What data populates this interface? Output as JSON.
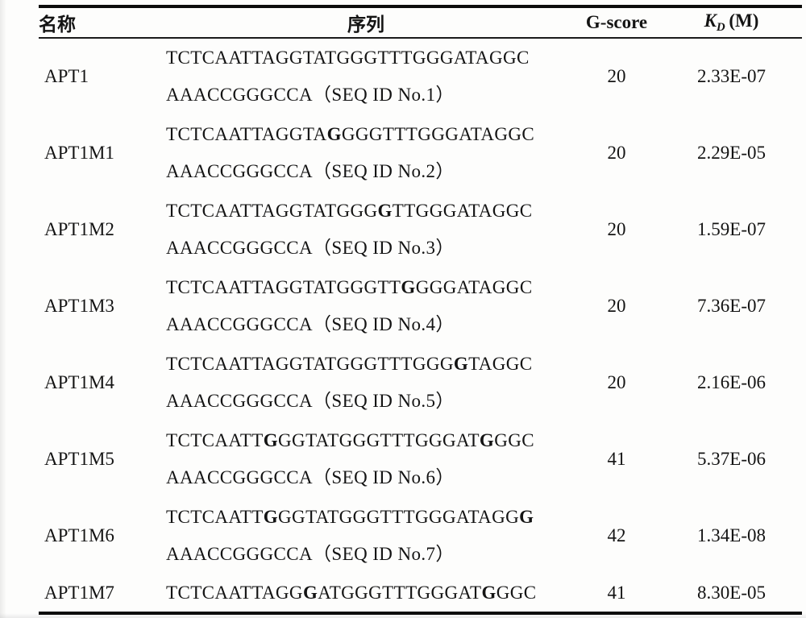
{
  "page": {
    "background": "#fdfdfc",
    "text_color": "#141414",
    "rule_color": "#0c0c0c"
  },
  "table": {
    "headers": {
      "name": "名称",
      "sequence": "序列",
      "gscore": "G-score",
      "kd_symbol": "K",
      "kd_subscript": "D",
      "kd_unit": "(M)"
    },
    "rows": [
      {
        "name": "APT1",
        "seq_line1": [
          {
            "t": "TCTCAATTAGGTATGGGTTTGGGATAGGC",
            "bold": false
          }
        ],
        "seq_line2": "AAACCGGGCCA（SEQ ID No.1）",
        "gscore": "20",
        "kd": "2.33E-07"
      },
      {
        "name": "APT1M1",
        "seq_line1": [
          {
            "t": "TCTCAATTAGGTA",
            "bold": false
          },
          {
            "t": "G",
            "bold": true
          },
          {
            "t": "GGGTTTGGGATAGGC",
            "bold": false
          }
        ],
        "seq_line2": "AAACCGGGCCA（SEQ ID No.2）",
        "gscore": "20",
        "kd": "2.29E-05"
      },
      {
        "name": "APT1M2",
        "seq_line1": [
          {
            "t": "TCTCAATTAGGTATGGG",
            "bold": false
          },
          {
            "t": "G",
            "bold": true
          },
          {
            "t": "TTGGGATAGGC",
            "bold": false
          }
        ],
        "seq_line2": "AAACCGGGCCA（SEQ ID No.3）",
        "gscore": "20",
        "kd": "1.59E-07"
      },
      {
        "name": "APT1M3",
        "seq_line1": [
          {
            "t": "TCTCAATTAGGTATGGGTT",
            "bold": false
          },
          {
            "t": "G",
            "bold": true
          },
          {
            "t": "GGGATAGGC",
            "bold": false
          }
        ],
        "seq_line2": "AAACCGGGCCA（SEQ ID No.4）",
        "gscore": "20",
        "kd": "7.36E-07"
      },
      {
        "name": "APT1M4",
        "seq_line1": [
          {
            "t": "TCTCAATTAGGTATGGGTTTGGG",
            "bold": false
          },
          {
            "t": "G",
            "bold": true
          },
          {
            "t": "TAGGC",
            "bold": false
          }
        ],
        "seq_line2": "AAACCGGGCCA（SEQ ID No.5）",
        "gscore": "20",
        "kd": "2.16E-06"
      },
      {
        "name": "APT1M5",
        "seq_line1": [
          {
            "t": "TCTCAATT",
            "bold": false
          },
          {
            "t": "G",
            "bold": true
          },
          {
            "t": "GGTATGGGTTTGGGAT",
            "bold": false
          },
          {
            "t": "G",
            "bold": true
          },
          {
            "t": "GGC",
            "bold": false
          }
        ],
        "seq_line2": "AAACCGGGCCA（SEQ ID No.6）",
        "gscore": "41",
        "kd": "5.37E-06"
      },
      {
        "name": "APT1M6",
        "seq_line1": [
          {
            "t": "TCTCAATT",
            "bold": false
          },
          {
            "t": "G",
            "bold": true
          },
          {
            "t": "GGTATGGGTTTGGGATAGG",
            "bold": false
          },
          {
            "t": "G",
            "bold": true
          }
        ],
        "seq_line2": "AAACCGGGCCA（SEQ ID No.7）",
        "gscore": "42",
        "kd": "1.34E-08"
      },
      {
        "name": "APT1M7",
        "seq_line1": [
          {
            "t": "TCTCAATTAGG",
            "bold": false
          },
          {
            "t": "G",
            "bold": true
          },
          {
            "t": "ATGGGTTTGGGAT",
            "bold": false
          },
          {
            "t": "G",
            "bold": true
          },
          {
            "t": "GGC",
            "bold": false
          }
        ],
        "seq_line2": null,
        "gscore": "41",
        "kd": "8.30E-05"
      }
    ]
  }
}
